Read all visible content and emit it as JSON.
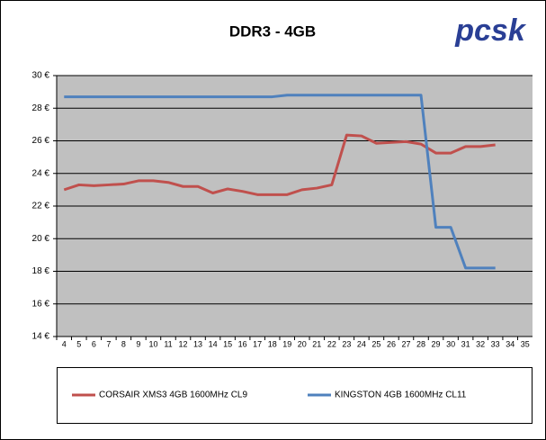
{
  "chart_data": {
    "type": "line",
    "title": "DDR3 - 4GB",
    "logo": "pcsk",
    "categories": [
      "4",
      "5",
      "6",
      "7",
      "8",
      "9",
      "10",
      "11",
      "12",
      "13",
      "14",
      "15",
      "16",
      "17",
      "18",
      "19",
      "20",
      "21",
      "22",
      "23",
      "24",
      "25",
      "26",
      "27",
      "28",
      "29",
      "30",
      "31",
      "32",
      "33",
      "34",
      "35"
    ],
    "series": [
      {
        "name": "CORSAIR XMS3 4GB 1600MHz CL9",
        "color": "#c0504d",
        "values": [
          23.0,
          23.3,
          23.25,
          23.3,
          23.35,
          23.55,
          23.55,
          23.45,
          23.2,
          23.2,
          22.8,
          23.05,
          22.9,
          22.7,
          22.7,
          22.7,
          23.0,
          23.1,
          23.3,
          26.35,
          26.3,
          25.85,
          25.9,
          25.95,
          25.8,
          25.25,
          25.25,
          25.65,
          25.65,
          25.75,
          null,
          null
        ]
      },
      {
        "name": "KINGSTON 4GB 1600MHz CL11",
        "color": "#4f81bd",
        "values": [
          28.7,
          28.7,
          28.7,
          28.7,
          28.7,
          28.7,
          28.7,
          28.7,
          28.7,
          28.7,
          28.7,
          28.7,
          28.7,
          28.7,
          28.7,
          28.8,
          28.8,
          28.8,
          28.8,
          28.8,
          28.8,
          28.8,
          28.8,
          28.8,
          28.8,
          20.7,
          20.7,
          18.2,
          18.2,
          18.2,
          null,
          null
        ]
      }
    ],
    "ylim": [
      14,
      30
    ],
    "yticks": [
      {
        "value": 14,
        "label": "14 €"
      },
      {
        "value": 16,
        "label": "16 €"
      },
      {
        "value": 18,
        "label": "18 €"
      },
      {
        "value": 20,
        "label": "20 €"
      },
      {
        "value": 22,
        "label": "22 €"
      },
      {
        "value": 24,
        "label": "24 €"
      },
      {
        "value": 26,
        "label": "26 €"
      },
      {
        "value": 28,
        "label": "28 €"
      },
      {
        "value": 30,
        "label": "30 €"
      }
    ],
    "grid": true,
    "plot_background": "#c0c0c0",
    "legend": "bottom"
  }
}
